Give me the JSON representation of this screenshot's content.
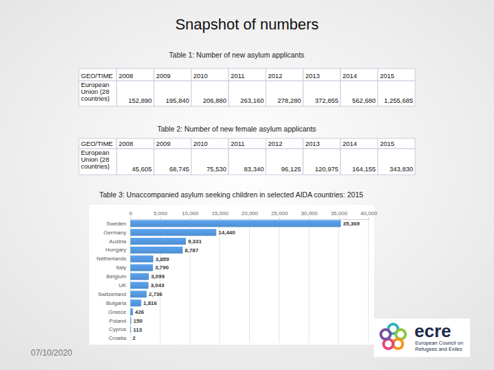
{
  "title": "Snapshot of numbers",
  "tables": [
    {
      "caption": "Table 1: Number of new asylum applicants",
      "header": [
        "GEO/TIME",
        "2008",
        "2009",
        "2010",
        "2011",
        "2012",
        "2013",
        "2014",
        "2015"
      ],
      "rows": [
        [
          "European Union (28 countries)",
          "152,890",
          "195,840",
          "206,880",
          "263,160",
          "278,280",
          "372,855",
          "562,680",
          "1,255,685"
        ]
      ]
    },
    {
      "caption": "Table 2: Number of new female asylum applicants",
      "header": [
        "GEO/TIME",
        "2008",
        "2009",
        "2010",
        "2011",
        "2012",
        "2013",
        "2014",
        "2015"
      ],
      "rows": [
        [
          "European Union (28 countries)",
          "45,605",
          "68,745",
          "75,530",
          "83,340",
          "96,125",
          "120,975",
          "164,155",
          "343,830"
        ]
      ]
    }
  ],
  "chart_data": {
    "type": "bar",
    "title": "Table 3: Unaccompanied asylum seeking children in selected AIDA countries: 2015",
    "orientation": "horizontal",
    "categories": [
      "Sweden",
      "Germany",
      "Austria",
      "Hungary",
      "Netherlands",
      "Italy",
      "Belgium",
      "UK",
      "Switzerland",
      "Bulgaria",
      "Greece",
      "Poland",
      "Cyprus",
      "Croatia"
    ],
    "values": [
      35369,
      14440,
      9331,
      8787,
      3859,
      3790,
      3099,
      3043,
      2736,
      1816,
      426,
      150,
      113,
      2
    ],
    "value_labels": [
      "35,369",
      "14,440",
      "9,331",
      "8,787",
      "3,859",
      "3,790",
      "3,099",
      "3,043",
      "2,736",
      "1,816",
      "426",
      "150",
      "113",
      "2"
    ],
    "color": "#4f8ed0",
    "xlim": [
      0,
      40000
    ],
    "xticks": [
      0,
      {
        "value": 5000,
        "label": "5,000"
      },
      {
        "value": 10000,
        "label": "10,000"
      },
      {
        "value": 15000,
        "label": "15,000"
      },
      {
        "value": 20000,
        "label": "20,000"
      },
      {
        "value": 25000,
        "label": "25,000"
      },
      {
        "value": 30000,
        "label": "30,000"
      },
      {
        "value": 35000,
        "label": "35,000"
      },
      {
        "value": 40000,
        "label": "40,000"
      }
    ],
    "grid": true,
    "data_labels": true
  },
  "footer": {
    "date": "07/10/2020",
    "logo": {
      "name": "ecre",
      "subtitle": "European Council on Refugees and Exiles"
    }
  }
}
